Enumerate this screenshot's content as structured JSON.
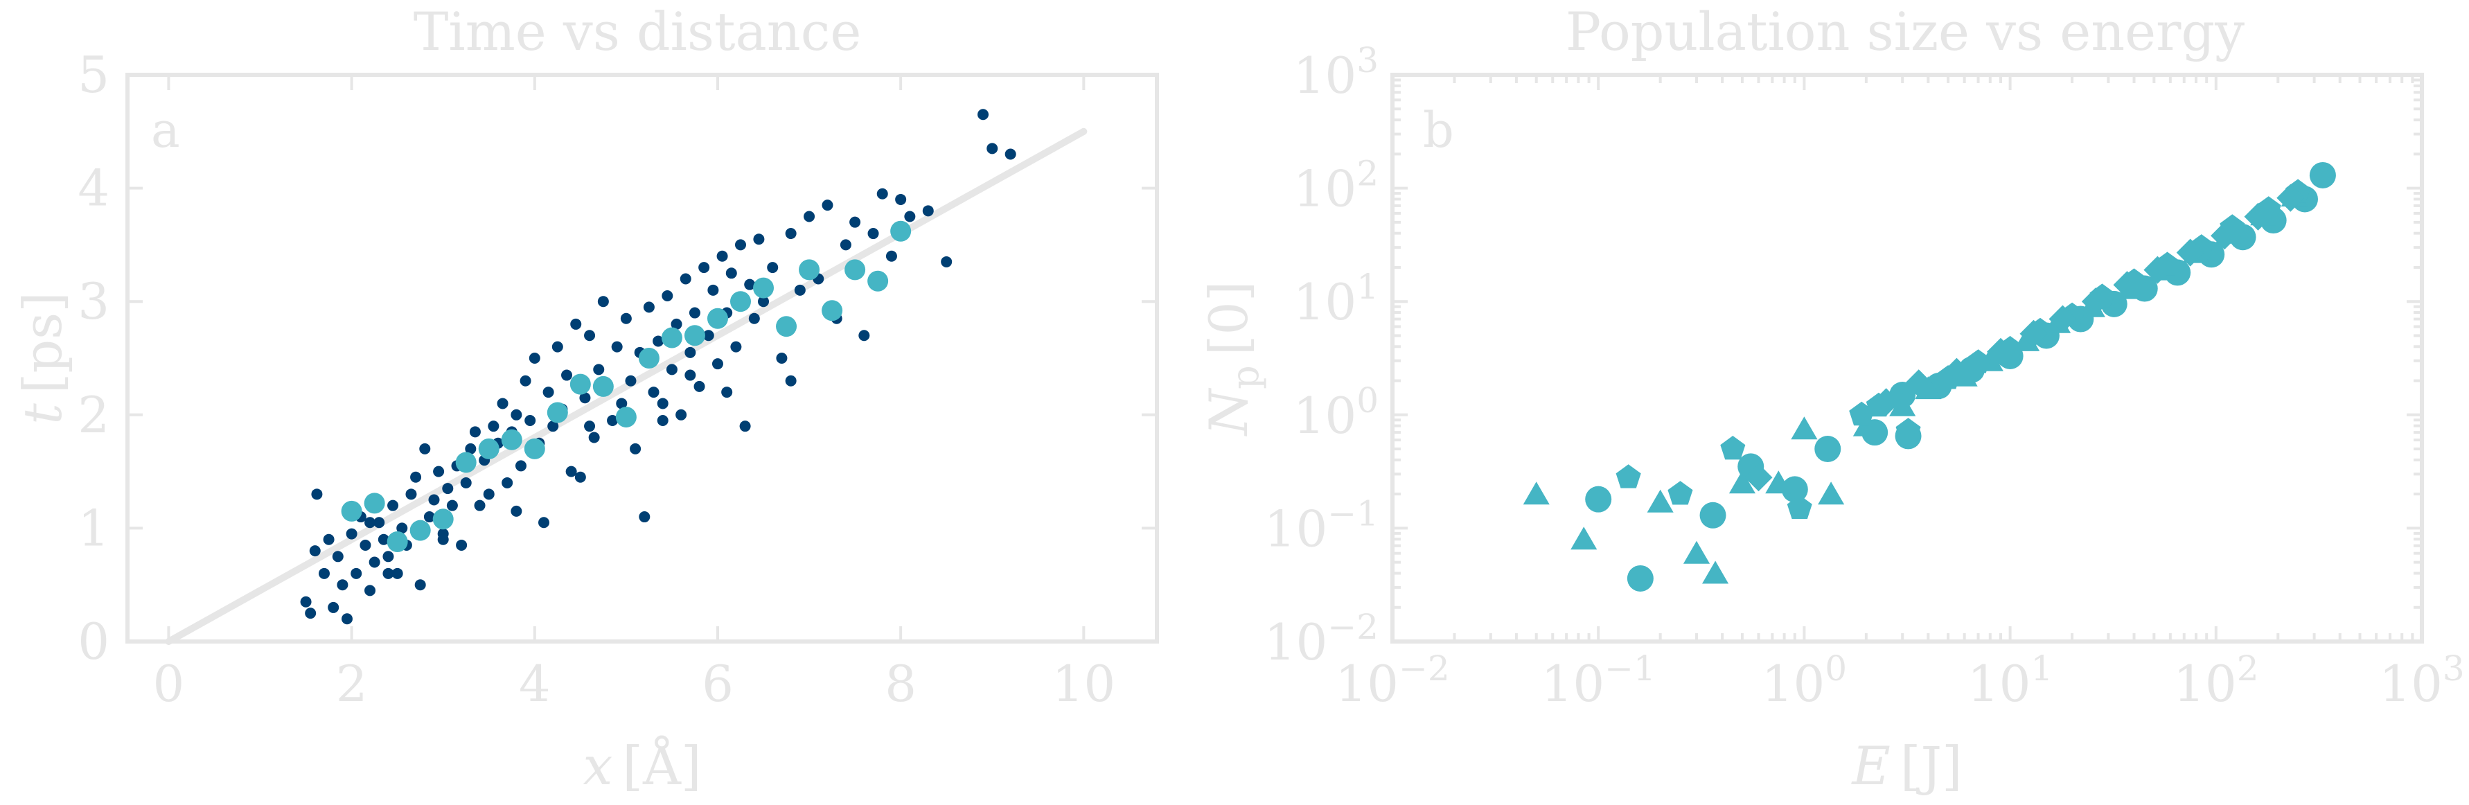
{
  "chart_data": [
    {
      "type": "scatter",
      "panel_label": "a",
      "title": "Time vs distance",
      "xlabel_var": "x",
      "xlabel_unit": "[Å]",
      "ylabel_var": "t",
      "ylabel_unit": "[ps]",
      "xlim": [
        -0.45,
        10.8
      ],
      "ylim": [
        0,
        5
      ],
      "xticks": [
        0,
        2,
        4,
        6,
        8,
        10
      ],
      "yticks": [
        0,
        1,
        2,
        3,
        4,
        5
      ],
      "grid": false,
      "colors": {
        "series_a": "#003f73",
        "series_b": "#45b5c4",
        "fit": "#e6e6e6",
        "axes": "#e6e6e6"
      },
      "series": [
        {
          "marker": "small-dot",
          "points": [
            [
              1.5,
              0.35
            ],
            [
              1.55,
              0.25
            ],
            [
              1.6,
              0.8
            ],
            [
              1.62,
              1.3
            ],
            [
              1.7,
              0.6
            ],
            [
              1.75,
              0.9
            ],
            [
              1.8,
              0.3
            ],
            [
              1.85,
              0.75
            ],
            [
              1.9,
              0.5
            ],
            [
              1.95,
              0.2
            ],
            [
              2.0,
              0.95
            ],
            [
              2.05,
              0.6
            ],
            [
              2.1,
              1.1
            ],
            [
              2.15,
              0.85
            ],
            [
              2.2,
              0.45
            ],
            [
              2.25,
              0.7
            ],
            [
              2.3,
              1.05
            ],
            [
              2.35,
              0.9
            ],
            [
              2.4,
              0.75
            ],
            [
              2.45,
              1.2
            ],
            [
              2.5,
              0.6
            ],
            [
              2.55,
              1.0
            ],
            [
              2.6,
              0.85
            ],
            [
              2.65,
              1.3
            ],
            [
              2.7,
              1.45
            ],
            [
              2.75,
              0.5
            ],
            [
              2.8,
              1.7
            ],
            [
              2.85,
              1.1
            ],
            [
              2.9,
              1.25
            ],
            [
              2.95,
              1.5
            ],
            [
              3.0,
              0.95
            ],
            [
              3.05,
              1.35
            ],
            [
              3.1,
              1.2
            ],
            [
              3.15,
              1.55
            ],
            [
              3.2,
              0.85
            ],
            [
              3.25,
              1.4
            ],
            [
              3.3,
              1.7
            ],
            [
              3.35,
              1.85
            ],
            [
              3.4,
              1.2
            ],
            [
              3.45,
              1.6
            ],
            [
              3.5,
              1.3
            ],
            [
              3.55,
              1.9
            ],
            [
              3.6,
              1.75
            ],
            [
              3.65,
              2.1
            ],
            [
              3.7,
              1.4
            ],
            [
              3.75,
              1.85
            ],
            [
              3.8,
              2.0
            ],
            [
              3.85,
              1.55
            ],
            [
              3.9,
              2.3
            ],
            [
              3.95,
              1.95
            ],
            [
              4.0,
              2.5
            ],
            [
              4.05,
              1.75
            ],
            [
              4.1,
              1.05
            ],
            [
              4.15,
              2.2
            ],
            [
              4.2,
              1.9
            ],
            [
              4.25,
              2.6
            ],
            [
              4.3,
              2.05
            ],
            [
              4.35,
              2.35
            ],
            [
              4.4,
              1.5
            ],
            [
              4.45,
              2.8
            ],
            [
              4.5,
              1.45
            ],
            [
              4.55,
              2.15
            ],
            [
              4.6,
              2.7
            ],
            [
              4.65,
              1.8
            ],
            [
              4.7,
              2.4
            ],
            [
              4.75,
              3.0
            ],
            [
              4.8,
              2.25
            ],
            [
              4.85,
              1.95
            ],
            [
              4.9,
              2.6
            ],
            [
              4.95,
              2.1
            ],
            [
              5.0,
              2.85
            ],
            [
              5.05,
              2.3
            ],
            [
              5.1,
              1.7
            ],
            [
              5.15,
              2.55
            ],
            [
              5.2,
              1.1
            ],
            [
              5.25,
              2.95
            ],
            [
              5.3,
              2.2
            ],
            [
              5.35,
              2.65
            ],
            [
              5.4,
              1.95
            ],
            [
              5.45,
              3.05
            ],
            [
              5.5,
              2.4
            ],
            [
              5.55,
              2.8
            ],
            [
              5.6,
              2.0
            ],
            [
              5.65,
              3.2
            ],
            [
              5.7,
              2.55
            ],
            [
              5.75,
              2.9
            ],
            [
              5.8,
              2.25
            ],
            [
              5.85,
              3.3
            ],
            [
              5.9,
              2.7
            ],
            [
              5.95,
              3.1
            ],
            [
              6.0,
              2.45
            ],
            [
              6.05,
              3.4
            ],
            [
              6.1,
              2.9
            ],
            [
              6.15,
              3.25
            ],
            [
              6.2,
              2.6
            ],
            [
              6.25,
              3.5
            ],
            [
              6.3,
              1.9
            ],
            [
              6.35,
              3.15
            ],
            [
              6.4,
              2.85
            ],
            [
              6.45,
              3.55
            ],
            [
              6.5,
              3.0
            ],
            [
              6.6,
              3.3
            ],
            [
              6.7,
              2.5
            ],
            [
              6.8,
              3.6
            ],
            [
              6.9,
              3.1
            ],
            [
              7.0,
              3.75
            ],
            [
              7.1,
              3.2
            ],
            [
              7.2,
              3.85
            ],
            [
              7.3,
              2.85
            ],
            [
              7.4,
              3.5
            ],
            [
              7.5,
              3.7
            ],
            [
              7.6,
              2.7
            ],
            [
              7.7,
              3.6
            ],
            [
              7.8,
              3.95
            ],
            [
              7.9,
              3.4
            ],
            [
              8.0,
              3.9
            ],
            [
              8.1,
              3.75
            ],
            [
              8.3,
              3.8
            ],
            [
              8.5,
              3.35
            ],
            [
              8.9,
              4.65
            ],
            [
              9.0,
              4.35
            ],
            [
              9.2,
              4.3
            ],
            [
              2.2,
              1.05
            ],
            [
              3.0,
              0.9
            ],
            [
              3.8,
              1.15
            ],
            [
              4.6,
              1.9
            ],
            [
              5.4,
              2.1
            ],
            [
              6.1,
              2.2
            ],
            [
              6.8,
              2.3
            ],
            [
              2.4,
              0.6
            ],
            [
              5.0,
              1.95
            ],
            [
              5.7,
              2.35
            ]
          ]
        },
        {
          "marker": "large-dot",
          "points": [
            [
              2.0,
              1.15
            ],
            [
              2.25,
              1.22
            ],
            [
              2.5,
              0.88
            ],
            [
              2.75,
              0.98
            ],
            [
              3.0,
              1.08
            ],
            [
              3.25,
              1.58
            ],
            [
              3.5,
              1.7
            ],
            [
              3.75,
              1.78
            ],
            [
              4.0,
              1.7
            ],
            [
              4.25,
              2.02
            ],
            [
              4.5,
              2.27
            ],
            [
              4.75,
              2.25
            ],
            [
              5.0,
              1.98
            ],
            [
              5.25,
              2.5
            ],
            [
              5.5,
              2.68
            ],
            [
              5.75,
              2.7
            ],
            [
              6.0,
              2.85
            ],
            [
              6.25,
              3.0
            ],
            [
              6.5,
              3.12
            ],
            [
              6.75,
              2.78
            ],
            [
              7.0,
              3.28
            ],
            [
              7.25,
              2.92
            ],
            [
              7.5,
              3.28
            ],
            [
              7.75,
              3.18
            ],
            [
              8.0,
              3.62
            ]
          ]
        },
        {
          "marker": "line",
          "points": [
            [
              0,
              0
            ],
            [
              10,
              4.5
            ]
          ]
        }
      ]
    },
    {
      "type": "scatter",
      "panel_label": "b",
      "title": "Population size vs energy",
      "xlabel_var": "E",
      "xlabel_unit": "[J]",
      "ylabel_var": "N",
      "ylabel_sub": "p",
      "ylabel_unit": "[0]",
      "x_scale": "log",
      "y_scale": "log",
      "xlim": [
        0.01,
        1000
      ],
      "ylim": [
        0.01,
        1000
      ],
      "xtick_exponents": [
        "−2",
        "−1",
        "0",
        "1",
        "2",
        "3"
      ],
      "ytick_exponents": [
        "−2",
        "−1",
        "0",
        "1",
        "2",
        "3"
      ],
      "tick_base": "10",
      "grid": false,
      "colors": {
        "markers": "#45b5c4",
        "axes": "#e6e6e6"
      },
      "series": [
        {
          "marker": "circle",
          "points": [
            [
              0.1,
              0.18
            ],
            [
              0.16,
              0.036
            ],
            [
              0.36,
              0.13
            ],
            [
              0.55,
              0.35
            ],
            [
              0.9,
              0.22
            ],
            [
              1.3,
              0.5
            ],
            [
              3.0,
              1.5
            ],
            [
              4.5,
              1.8
            ],
            [
              6.5,
              2.5
            ],
            [
              10,
              3.3
            ],
            [
              15,
              5
            ],
            [
              22,
              7
            ],
            [
              32,
              9.5
            ],
            [
              45,
              13
            ],
            [
              65,
              18
            ],
            [
              95,
              26
            ],
            [
              135,
              37
            ],
            [
              190,
              52
            ],
            [
              270,
              80
            ],
            [
              330,
              130
            ],
            [
              2.2,
              0.7
            ],
            [
              3.2,
              0.65
            ]
          ]
        },
        {
          "marker": "triangle",
          "points": [
            [
              0.05,
              0.2
            ],
            [
              0.085,
              0.08
            ],
            [
              0.2,
              0.17
            ],
            [
              0.3,
              0.06
            ],
            [
              0.37,
              0.04
            ],
            [
              0.5,
              0.25
            ],
            [
              0.75,
              0.25
            ],
            [
              1.0,
              0.75
            ],
            [
              1.35,
              0.2
            ],
            [
              2.0,
              0.8
            ],
            [
              3.0,
              1.2
            ],
            [
              4.0,
              1.7
            ],
            [
              6.0,
              2.2
            ],
            [
              8.0,
              3.0
            ],
            [
              12,
              4.5
            ],
            [
              17,
              6.5
            ],
            [
              25,
              9.0
            ],
            [
              38,
              13
            ],
            [
              55,
              19
            ],
            [
              80,
              27
            ],
            [
              115,
              40
            ],
            [
              170,
              58
            ],
            [
              240,
              85
            ]
          ]
        },
        {
          "marker": "pentagon",
          "points": [
            [
              0.14,
              0.28
            ],
            [
              0.25,
              0.2
            ],
            [
              0.45,
              0.5
            ],
            [
              0.95,
              0.15
            ],
            [
              1.9,
              1.0
            ],
            [
              2.3,
              1.2
            ],
            [
              3.2,
              0.72
            ],
            [
              5.0,
              2.1
            ],
            [
              7.0,
              2.9
            ],
            [
              10,
              3.8
            ],
            [
              14,
              5.5
            ],
            [
              20,
              7.5
            ],
            [
              28,
              11
            ],
            [
              40,
              15
            ],
            [
              58,
              21
            ],
            [
              85,
              30
            ],
            [
              120,
              45
            ],
            [
              180,
              65
            ],
            [
              250,
              92
            ]
          ]
        },
        {
          "marker": "diamond",
          "points": [
            [
              0.6,
              0.28
            ],
            [
              2.5,
              1.3
            ],
            [
              3.6,
              1.9
            ],
            [
              5.5,
              2.4
            ],
            [
              9,
              3.6
            ],
            [
              13,
              5.2
            ],
            [
              18,
              7
            ],
            [
              26,
              10
            ],
            [
              37,
              14
            ],
            [
              52,
              19
            ],
            [
              75,
              27
            ],
            [
              110,
              38
            ],
            [
              160,
              56
            ],
            [
              230,
              82
            ]
          ]
        }
      ]
    }
  ]
}
